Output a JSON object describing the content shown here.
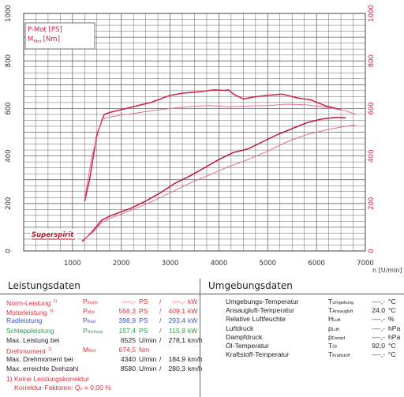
{
  "chart_data": {
    "type": "line",
    "legend": [
      {
        "symbol": "P-Mot [PS]",
        "text": "P-Mot [PS]"
      },
      {
        "symbol": "M",
        "sub": "Mot",
        "unit": "[Nm]"
      }
    ],
    "xlim": [
      0,
      7000
    ],
    "ylim_left": [
      0,
      1000
    ],
    "ylim_right": [
      0,
      1000
    ],
    "x_ticks": [
      "1000",
      "2000",
      "3000",
      "4000",
      "5000",
      "6000",
      "7000"
    ],
    "x_unit": "n [U/min]",
    "y_ticks_left": [
      "0",
      "200",
      "400",
      "600",
      "800",
      "1000"
    ],
    "y_ticks_right": [
      "0",
      "200",
      "400",
      "600",
      "800",
      "1000"
    ],
    "colors": {
      "grid": "#555555",
      "power": "#c81e46",
      "torque": "#d93c50",
      "light": "#e06a88"
    },
    "series": [
      {
        "name": "torque-main",
        "color": "#d42040",
        "x": [
          1250,
          1350,
          1500,
          1650,
          1800,
          2000,
          2300,
          2600,
          3000,
          3300,
          3600,
          3900,
          4100,
          4200,
          4300,
          4500,
          4700,
          5000,
          5300,
          5600,
          5900,
          6200,
          6500
        ],
        "y": [
          210,
          300,
          490,
          575,
          585,
          595,
          610,
          625,
          655,
          665,
          670,
          678,
          676,
          678,
          660,
          640,
          648,
          655,
          660,
          645,
          635,
          610,
          595
        ]
      },
      {
        "name": "torque-light",
        "color": "#e0708a",
        "x": [
          1250,
          1400,
          1600,
          1800,
          2000,
          2300,
          2600,
          3000,
          3400,
          3800,
          4200,
          4600,
          5000,
          5400,
          5800,
          6200,
          6600,
          6800
        ],
        "y": [
          220,
          400,
          555,
          565,
          572,
          580,
          590,
          600,
          608,
          612,
          607,
          610,
          612,
          618,
          615,
          605,
          590,
          575
        ]
      },
      {
        "name": "power-main",
        "color": "#c0183c",
        "x": [
          1200,
          1400,
          1600,
          1800,
          2000,
          2200,
          2500,
          2800,
          3100,
          3400,
          3700,
          4000,
          4300,
          4600,
          4900,
          5200,
          5500,
          5800,
          6100,
          6400,
          6600
        ],
        "y": [
          40,
          80,
          130,
          150,
          165,
          180,
          210,
          245,
          285,
          315,
          350,
          385,
          415,
          430,
          460,
          490,
          515,
          540,
          555,
          562,
          560
        ]
      },
      {
        "name": "power-light",
        "color": "#e0708a",
        "x": [
          1200,
          1400,
          1600,
          1800,
          2000,
          2300,
          2600,
          3000,
          3400,
          3800,
          4200,
          4600,
          5000,
          5400,
          5800,
          6200,
          6600,
          6800
        ],
        "y": [
          45,
          75,
          120,
          140,
          155,
          180,
          205,
          245,
          285,
          320,
          355,
          385,
          420,
          460,
          490,
          510,
          525,
          530
        ]
      }
    ]
  },
  "logo_text": "Superspirit",
  "left_table": {
    "title": "Leistungsdaten",
    "rows": [
      {
        "label": "Norm-Leistung",
        "note": "1)",
        "sym": "P",
        "sub": "Norm",
        "v1": "----,-",
        "u1": "PS",
        "sep": "/",
        "v2": "----,-",
        "u2": "kW",
        "cls": "red"
      },
      {
        "label": "Motorleistung",
        "note": "1)",
        "sym": "P",
        "sub": "Mot",
        "v1": "556,3",
        "u1": "PS",
        "sep": "/",
        "v2": "409,1",
        "u2": "kW",
        "cls": "red"
      },
      {
        "label": "Radleistung",
        "note": "",
        "sym": "P",
        "sub": "Rad",
        "v1": "398,9",
        "u1": "PS",
        "sep": "/",
        "v2": "293,4",
        "u2": "kW",
        "cls": "blue"
      },
      {
        "label": "Schleppleistung",
        "note": "",
        "sym": "P",
        "sub": "Schlepp",
        "v1": "157,4",
        "u1": "PS",
        "sep": "/",
        "v2": "115,8",
        "u2": "kW",
        "cls": "green"
      },
      {
        "label": "Max. Leistung bei",
        "note": "",
        "sym": "",
        "sub": "",
        "v1": "6525",
        "u1": "U/min",
        "sep": "/",
        "v2": "278,1",
        "u2": "km/h",
        "cls": "dark"
      },
      {
        "label": "Drehmoment",
        "note": "1)",
        "sym": "M",
        "sub": "Mot",
        "v1": "674,5",
        "u1": "Nm",
        "sep": "",
        "v2": "",
        "u2": "",
        "cls": "red"
      },
      {
        "label": "Max. Drehmoment bei",
        "note": "",
        "sym": "",
        "sub": "",
        "v1": "4340",
        "u1": "U/min",
        "sep": "/",
        "v2": "184,9",
        "u2": "km/h",
        "cls": "dark"
      },
      {
        "label": "Max. erreichte Drehzahl",
        "note": "",
        "sym": "",
        "sub": "",
        "v1": "8580",
        "u1": "U/min",
        "sep": "/",
        "v2": "280,3",
        "u2": "km/h",
        "cls": "dark"
      }
    ],
    "footnote1": "1) Keine Leistungskorrektur",
    "footnote2_a": "Korrektur-Faktoren: Q",
    "footnote2_sub": "v",
    "footnote2_b": " =   0,00 %"
  },
  "right_table": {
    "title": "Umgebungsdaten",
    "rows": [
      {
        "label": "Umgebungs-Temperatur",
        "sym": "T",
        "sub": "Umgebung",
        "val": "----,-",
        "unit": "°C"
      },
      {
        "label": "Ansaugluft-Temperatur",
        "sym": "T",
        "sub": "Ansaugluft",
        "val": "24,0",
        "unit": "°C"
      },
      {
        "label": "Relative Luftfeuchte",
        "sym": "H",
        "sub": "Luft",
        "val": "----,-",
        "unit": "%"
      },
      {
        "label": "Luftdruck",
        "sym": "p",
        "sub": "Luft",
        "val": "----,-",
        "unit": "hPa"
      },
      {
        "label": "Dampfdruck",
        "sym": "p",
        "sub": "Dampf",
        "val": "----,-",
        "unit": "hPa"
      },
      {
        "label": "Öl-Temperatur",
        "sym": "T",
        "sub": "Öl",
        "val": "92,0",
        "unit": "°C"
      },
      {
        "label": "Kraftstoff-Temperatur",
        "sym": "T",
        "sub": "Kraftstoff",
        "val": "----,-",
        "unit": "°C"
      }
    ]
  }
}
